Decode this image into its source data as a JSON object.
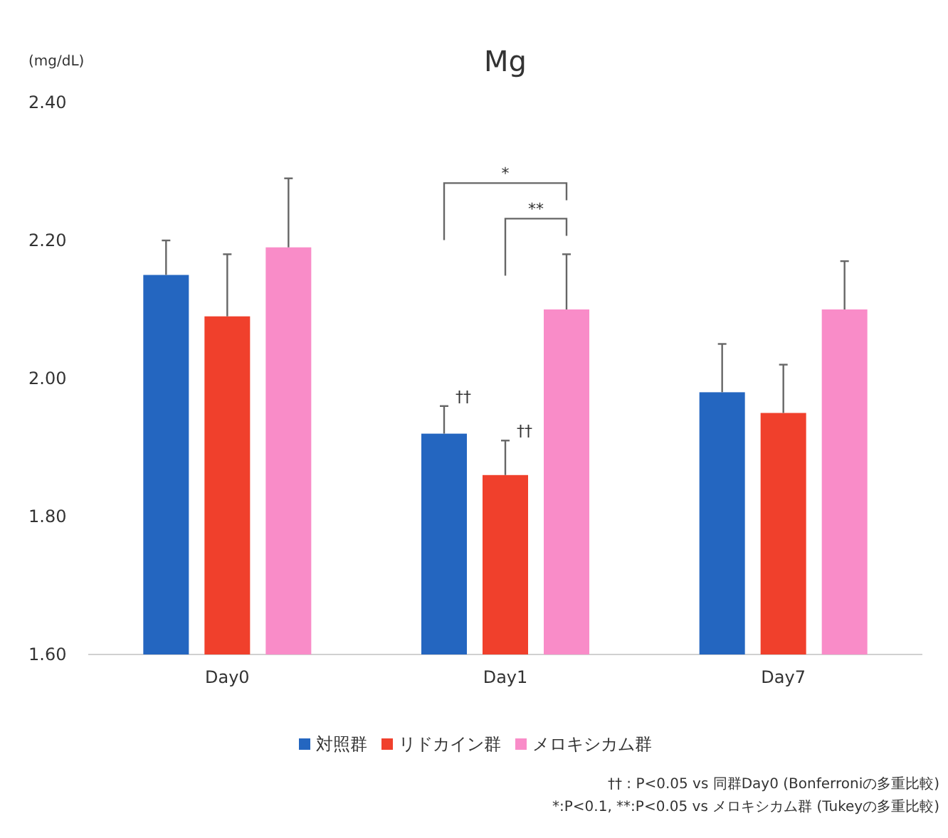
{
  "chart_data": {
    "type": "bar",
    "title": "Mg",
    "ylabel": "(mg/dL)",
    "categories": [
      "Day0",
      "Day1",
      "Day7"
    ],
    "series": [
      {
        "name": "対照群",
        "color": "#2466c0",
        "values": [
          2.15,
          1.92,
          1.98
        ],
        "errors": [
          [
            2.15,
            2.2
          ],
          [
            1.92,
            1.96
          ],
          [
            1.98,
            2.05
          ]
        ]
      },
      {
        "name": "リドカイン群",
        "color": "#f0402c",
        "values": [
          2.09,
          1.86,
          1.95
        ],
        "errors": [
          [
            2.09,
            2.18
          ],
          [
            1.86,
            1.91
          ],
          [
            1.95,
            2.02
          ]
        ]
      },
      {
        "name": "メロキシカム群",
        "color": "#f98cc8",
        "values": [
          2.19,
          2.1,
          2.1
        ],
        "errors": [
          [
            2.19,
            2.29
          ],
          [
            2.1,
            2.18
          ],
          [
            2.1,
            2.17
          ]
        ]
      }
    ],
    "ylim": [
      1.6,
      2.4
    ],
    "yticks": [
      {
        "value": 1.6,
        "label": "1.60"
      },
      {
        "value": 1.8,
        "label": "1.80"
      },
      {
        "value": 2.0,
        "label": "2.00"
      },
      {
        "value": 2.2,
        "label": "2.20"
      },
      {
        "value": 2.4,
        "label": "2.40"
      }
    ],
    "legend": "bottom",
    "annotations": [
      {
        "text": "††",
        "x": "Day1",
        "y": 1.92
      },
      {
        "text": "††",
        "x": "Day1",
        "y": 1.86
      },
      "*",
      "**",
      "†† : P<0.05 vs 同群Day0 (Bonferroniの多重比較)",
      "*:P<0.1, **:P<0.05 vs メロキシカム群 (Tukeyの多重比較)"
    ]
  }
}
